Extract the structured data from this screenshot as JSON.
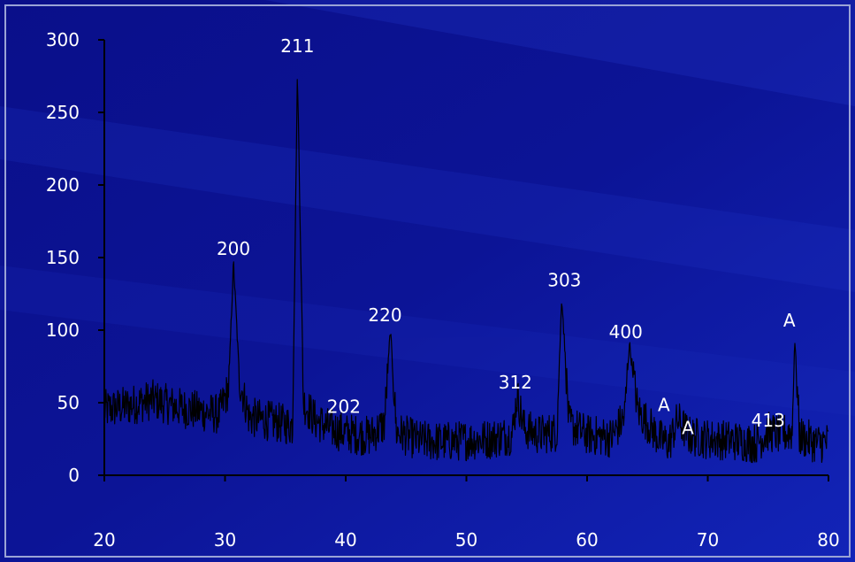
{
  "chart_data": {
    "type": "line",
    "title": "",
    "xlabel": "",
    "ylabel": "",
    "xlim": [
      20,
      80
    ],
    "ylim": [
      0,
      300
    ],
    "x_ticks": [
      20,
      30,
      40,
      50,
      60,
      70,
      80
    ],
    "y_ticks": [
      0,
      50,
      100,
      150,
      200,
      250,
      300
    ],
    "x_tick_labels": [
      "20",
      "30",
      "40",
      "50",
      "60",
      "70",
      "80"
    ],
    "y_tick_labels": [
      "0",
      "50",
      "100",
      "150",
      "200",
      "250",
      "300"
    ],
    "grid": false,
    "legend": "none",
    "series": [
      {
        "x": [
          20,
          22,
          24,
          26,
          28,
          29.5,
          30.3,
          30.7,
          31.2,
          32,
          34,
          35.6,
          36.0,
          36.5,
          37.5,
          38.5,
          40,
          42,
          43.2,
          43.7,
          44.2,
          46,
          48,
          50,
          52,
          53.8,
          54.2,
          54.8,
          56,
          57.5,
          57.9,
          58.5,
          60,
          62,
          63.1,
          63.5,
          64.2,
          66,
          66.8,
          67.5,
          68.5,
          70,
          72,
          74,
          75.0,
          76,
          77.0,
          77.2,
          77.6,
          79,
          80
        ],
        "y": [
          45,
          48,
          52,
          47,
          44,
          42,
          60,
          147,
          65,
          40,
          37,
          34,
          278,
          50,
          38,
          33,
          29,
          27,
          35,
          100,
          30,
          24,
          23,
          24,
          25,
          28,
          55,
          32,
          28,
          30,
          124,
          35,
          28,
          26,
          40,
          91,
          45,
          25,
          22,
          38,
          27,
          25,
          24,
          22,
          30,
          28,
          30,
          95,
          27,
          22,
          23
        ]
      }
    ],
    "annotations": [
      {
        "text": "200",
        "x": 30.7,
        "y": 147
      },
      {
        "text": "211",
        "x": 36.0,
        "y": 278
      },
      {
        "text": "202",
        "x": 37.5,
        "y": 38
      },
      {
        "text": "220",
        "x": 43.7,
        "y": 100
      },
      {
        "text": "312",
        "x": 54.2,
        "y": 55
      },
      {
        "text": "303",
        "x": 57.9,
        "y": 124
      },
      {
        "text": "400",
        "x": 63.5,
        "y": 91
      },
      {
        "text": "A",
        "x": 66.8,
        "y": 38
      },
      {
        "text": "A",
        "x": 68.5,
        "y": 27
      },
      {
        "text": "413",
        "x": 75.0,
        "y": 30
      },
      {
        "text": "A",
        "x": 77.2,
        "y": 95
      }
    ]
  },
  "colors": {
    "background_dark": "#0a0f8a",
    "background_light": "#1b2dc6",
    "frame": "#9aa3d6",
    "axis": "#000000",
    "trace": "#000000",
    "text": "#ffffff"
  }
}
